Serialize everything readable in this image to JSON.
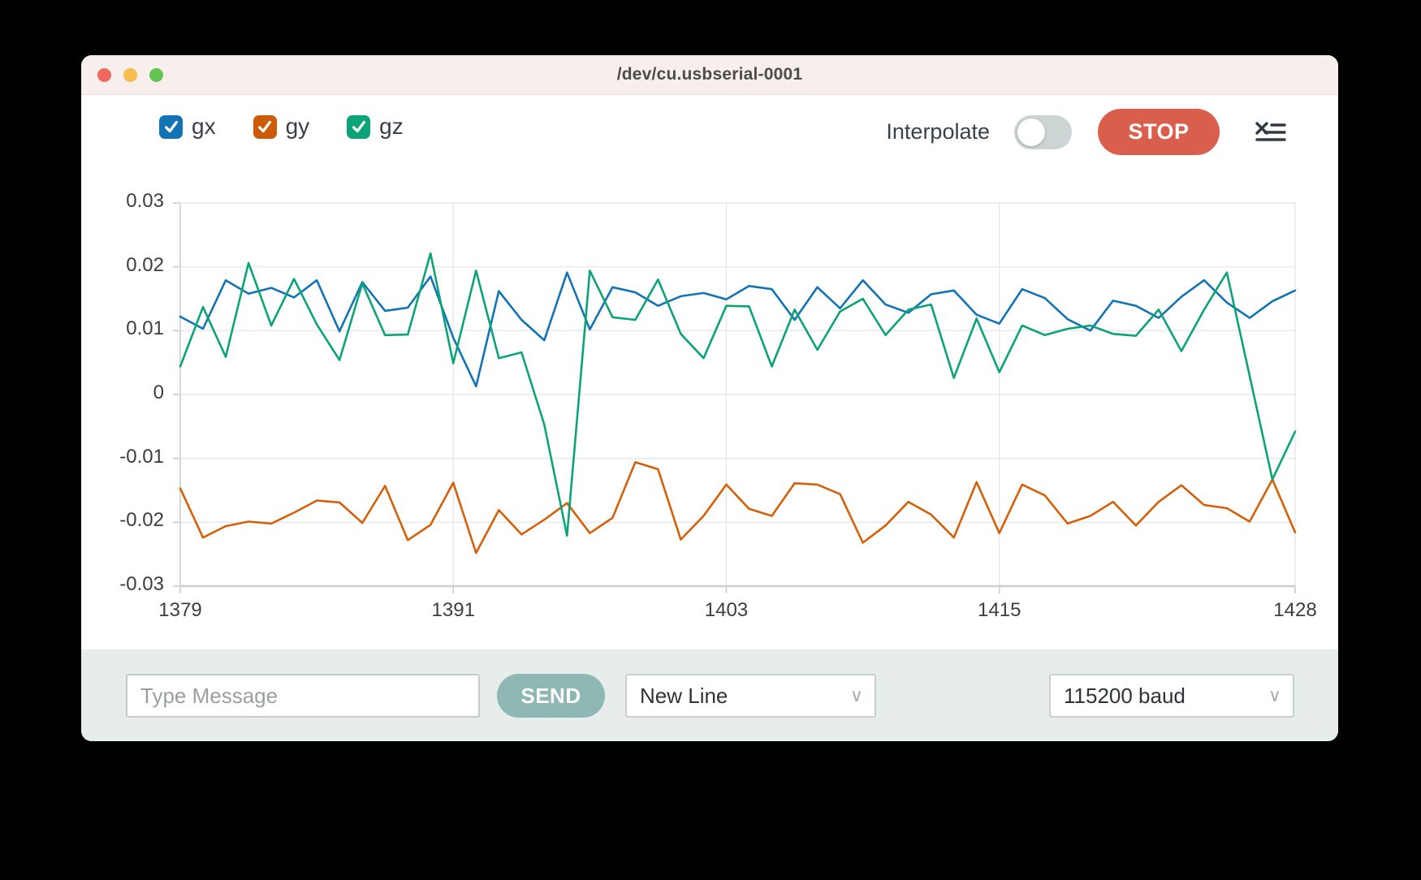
{
  "window": {
    "title": "/dev/cu.usbserial-0001"
  },
  "controls": {
    "legend": [
      {
        "label": "gx",
        "color": "#1273b5",
        "checked": true
      },
      {
        "label": "gy",
        "color": "#cd5a05",
        "checked": true
      },
      {
        "label": "gz",
        "color": "#0ba377",
        "checked": true
      }
    ],
    "interpolate_label": "Interpolate",
    "interpolate_on": false,
    "stop_label": "STOP",
    "stop_color": "#d95f4c"
  },
  "chart_data": {
    "type": "line",
    "title": "",
    "xlabel": "",
    "ylabel": "",
    "grid": true,
    "ylim": [
      -0.03,
      0.03
    ],
    "x": [
      1379,
      1380,
      1381,
      1382,
      1383,
      1384,
      1385,
      1386,
      1387,
      1388,
      1389,
      1390,
      1391,
      1392,
      1393,
      1394,
      1395,
      1396,
      1397,
      1398,
      1399,
      1400,
      1401,
      1402,
      1403,
      1404,
      1405,
      1406,
      1407,
      1408,
      1409,
      1410,
      1411,
      1412,
      1413,
      1414,
      1415,
      1416,
      1417,
      1418,
      1419,
      1420,
      1421,
      1422,
      1423,
      1424,
      1425,
      1426,
      1427,
      1428
    ],
    "x_ticks": {
      "labels": [
        "1379",
        "1391",
        "1403",
        "1415",
        "1428"
      ],
      "indices": [
        0,
        12,
        24,
        36,
        49
      ]
    },
    "y_ticks": {
      "labels": [
        "0.03",
        "0.02",
        "0.01",
        "0",
        "-0.01",
        "-0.02",
        "-0.03"
      ],
      "values": [
        0.03,
        0.02,
        0.01,
        0,
        -0.01,
        -0.02,
        -0.03
      ]
    },
    "series": [
      {
        "name": "gx",
        "color": "#1273b5",
        "values": [
          0.0122,
          0.0103,
          0.0179,
          0.0158,
          0.0167,
          0.0152,
          0.0179,
          0.0099,
          0.0176,
          0.0131,
          0.0136,
          0.0185,
          0.0089,
          0.0013,
          0.0162,
          0.0117,
          0.0085,
          0.0191,
          0.0102,
          0.0168,
          0.016,
          0.0139,
          0.0154,
          0.0159,
          0.0149,
          0.017,
          0.0165,
          0.0117,
          0.0168,
          0.0135,
          0.0179,
          0.0141,
          0.0128,
          0.0157,
          0.0163,
          0.0125,
          0.0111,
          0.0165,
          0.0151,
          0.0118,
          0.01,
          0.0147,
          0.0139,
          0.012,
          0.0153,
          0.0179,
          0.0144,
          0.012,
          0.0146,
          0.0163
        ]
      },
      {
        "name": "gy",
        "color": "#d4600a",
        "values": [
          -0.0147,
          -0.0224,
          -0.0206,
          -0.0199,
          -0.0202,
          -0.0185,
          -0.0166,
          -0.0169,
          -0.0201,
          -0.0143,
          -0.0228,
          -0.0204,
          -0.0138,
          -0.0248,
          -0.0181,
          -0.0219,
          -0.0196,
          -0.017,
          -0.0217,
          -0.0193,
          -0.0106,
          -0.0117,
          -0.0227,
          -0.019,
          -0.0141,
          -0.0179,
          -0.019,
          -0.0139,
          -0.0141,
          -0.0156,
          -0.0232,
          -0.0205,
          -0.0168,
          -0.0188,
          -0.0224,
          -0.0137,
          -0.0217,
          -0.0141,
          -0.0158,
          -0.0202,
          -0.019,
          -0.0168,
          -0.0205,
          -0.0168,
          -0.0142,
          -0.0173,
          -0.0178,
          -0.0199,
          -0.0133,
          -0.0216
        ]
      },
      {
        "name": "gz",
        "color": "#0ba377",
        "values": [
          0.0044,
          0.0137,
          0.0059,
          0.0206,
          0.0108,
          0.0181,
          0.011,
          0.0054,
          0.0174,
          0.0093,
          0.0094,
          0.0221,
          0.0049,
          0.0194,
          0.0057,
          0.0066,
          -0.0047,
          -0.0221,
          0.0194,
          0.0121,
          0.0117,
          0.018,
          0.0095,
          0.0057,
          0.0139,
          0.0138,
          0.0044,
          0.0133,
          0.007,
          0.013,
          0.015,
          0.0093,
          0.0133,
          0.0141,
          0.0026,
          0.0119,
          0.0035,
          0.0108,
          0.0093,
          0.0103,
          0.0108,
          0.0095,
          0.0092,
          0.0133,
          0.0068,
          0.0133,
          0.0191,
          0.0029,
          -0.0133,
          -0.0058
        ]
      }
    ],
    "legend_position": "top-left"
  },
  "bottom_bar": {
    "message_placeholder": "Type Message",
    "send_label": "SEND",
    "line_ending_selected": "New Line",
    "baud_selected": "115200 baud"
  }
}
